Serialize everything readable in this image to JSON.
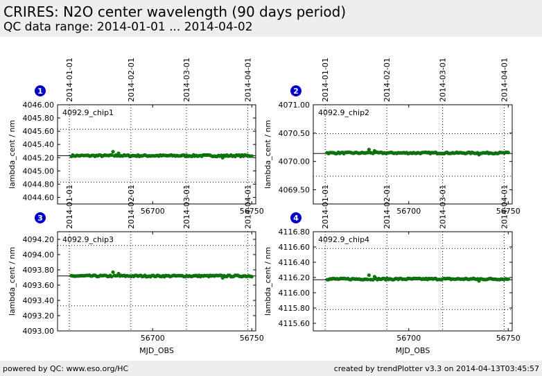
{
  "header": {
    "title": "CRIRES: N2O center wavelength (90 days period)",
    "subtitle": "QC data range: 2014-01-01 ... 2014-04-02"
  },
  "footer": {
    "left": "powered by QC: www.eso.org/HC",
    "right": "created by trendPlotter v3.3 on 2014-04-13T03:45:57"
  },
  "colors": {
    "points": "#008000",
    "points_edge": "#1a5a1a",
    "badge": "#0000cc"
  },
  "date_ticks": [
    {
      "mjd": 56658,
      "label": "2014-01-01"
    },
    {
      "mjd": 56689,
      "label": "2014-02-01"
    },
    {
      "mjd": 56717,
      "label": "2014-03-01"
    },
    {
      "mjd": 56748,
      "label": "2014-04-01"
    }
  ],
  "chart_data": [
    {
      "type": "scatter",
      "badge": "1",
      "label": "4092.9_chip1",
      "xlabel": "",
      "ylabel": "lambda_cent / nm",
      "xlim": [
        56652,
        56752
      ],
      "ylim": [
        4044.5,
        4046.0
      ],
      "xticks": [
        {
          "v": 56700,
          "label": "56700"
        },
        {
          "v": 56750,
          "label": "56750"
        }
      ],
      "yticks": [
        {
          "v": 4044.6,
          "label": "4044.60"
        },
        {
          "v": 4044.8,
          "label": "4044.80"
        },
        {
          "v": 4045.0,
          "label": "4045.00"
        },
        {
          "v": 4045.2,
          "label": "4045.20"
        },
        {
          "v": 4045.4,
          "label": "4045.40"
        },
        {
          "v": 4045.6,
          "label": "4045.60"
        },
        {
          "v": 4045.8,
          "label": "4045.80"
        },
        {
          "v": 4046.0,
          "label": "4046.00"
        }
      ],
      "ref_line": 4045.23,
      "dotted_h": [
        4045.63,
        4044.83
      ],
      "base": 4045.23,
      "wiggle": 0.012,
      "spike": 0.06
    },
    {
      "type": "scatter",
      "badge": "2",
      "label": "4092.9_chip2",
      "xlabel": "",
      "ylabel": "lambda_cent / nm",
      "xlim": [
        56652,
        56752
      ],
      "ylim": [
        4069.25,
        4071.0
      ],
      "xticks": [
        {
          "v": 56700,
          "label": "56700"
        },
        {
          "v": 56750,
          "label": "56750"
        }
      ],
      "yticks": [
        {
          "v": 4069.5,
          "label": "4069.50"
        },
        {
          "v": 4070.0,
          "label": "4070.00"
        },
        {
          "v": 4070.5,
          "label": "4070.50"
        },
        {
          "v": 4071.0,
          "label": "4071.00"
        }
      ],
      "ref_line": 4070.14,
      "dotted_h": [
        4070.49,
        4069.74
      ],
      "base": 4070.15,
      "wiggle": 0.012,
      "spike": 0.06
    },
    {
      "type": "scatter",
      "badge": "3",
      "label": "4092.9_chip3",
      "xlabel": "MJD_OBS",
      "ylabel": "lambda_cent / nm",
      "xlim": [
        56652,
        56752
      ],
      "ylim": [
        4093.0,
        4094.3
      ],
      "xticks": [
        {
          "v": 56700,
          "label": "56700"
        },
        {
          "v": 56750,
          "label": "56750"
        }
      ],
      "yticks": [
        {
          "v": 4093.0,
          "label": "4093.00"
        },
        {
          "v": 4093.2,
          "label": "4093.20"
        },
        {
          "v": 4093.4,
          "label": "4093.40"
        },
        {
          "v": 4093.6,
          "label": "4093.60"
        },
        {
          "v": 4093.8,
          "label": "4093.80"
        },
        {
          "v": 4094.0,
          "label": "4094.00"
        },
        {
          "v": 4094.2,
          "label": "4094.20"
        }
      ],
      "ref_line": 4093.72,
      "dotted_h": [
        4094.12,
        4093.33
      ],
      "base": 4093.72,
      "wiggle": 0.01,
      "spike": 0.05
    },
    {
      "type": "scatter",
      "badge": "4",
      "label": "4092.9_chip4",
      "xlabel": "MJD_OBS",
      "ylabel": "lambda_cent / nm",
      "xlim": [
        56652,
        56752
      ],
      "ylim": [
        4115.5,
        4116.8
      ],
      "xticks": [
        {
          "v": 56700,
          "label": "56700"
        },
        {
          "v": 56750,
          "label": "56750"
        }
      ],
      "yticks": [
        {
          "v": 4115.6,
          "label": "4115.60"
        },
        {
          "v": 4115.8,
          "label": "4115.80"
        },
        {
          "v": 4116.0,
          "label": "4116.00"
        },
        {
          "v": 4116.2,
          "label": "4116.20"
        },
        {
          "v": 4116.4,
          "label": "4116.40"
        },
        {
          "v": 4116.6,
          "label": "4116.60"
        },
        {
          "v": 4116.8,
          "label": "4116.80"
        }
      ],
      "ref_line": 4116.17,
      "dotted_h": [
        4116.58,
        4115.78
      ],
      "base": 4116.18,
      "wiggle": 0.01,
      "spike": 0.05
    }
  ]
}
